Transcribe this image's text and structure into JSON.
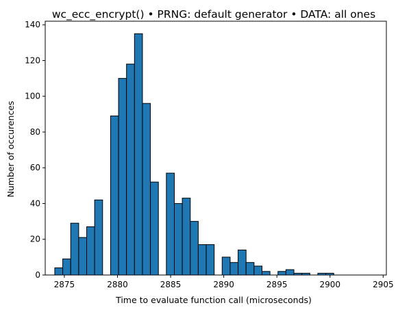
{
  "chart_data": {
    "type": "bar",
    "title": "wc_ecc_encrypt() • PRNG: default generator • DATA: all ones",
    "xlabel": "Time to evaluate function call (microseconds)",
    "ylabel": "Number of occurences",
    "xlim": [
      2873.2,
      2905.3
    ],
    "ylim": [
      0,
      142
    ],
    "xticks": [
      2875,
      2880,
      2885,
      2890,
      2895,
      2900,
      2905
    ],
    "yticks": [
      0,
      20,
      40,
      60,
      80,
      100,
      120,
      140
    ],
    "bar_color": "#1f77b4",
    "edge_color": "#000000",
    "bin_width": 0.75,
    "bins": [
      {
        "x0": 2874.1,
        "value": 4
      },
      {
        "x0": 2874.85,
        "value": 9
      },
      {
        "x0": 2875.6,
        "value": 29
      },
      {
        "x0": 2876.35,
        "value": 21
      },
      {
        "x0": 2877.1,
        "value": 27
      },
      {
        "x0": 2877.85,
        "value": 42
      },
      {
        "x0": 2879.35,
        "value": 89
      },
      {
        "x0": 2880.1,
        "value": 110
      },
      {
        "x0": 2880.85,
        "value": 118
      },
      {
        "x0": 2881.6,
        "value": 135
      },
      {
        "x0": 2882.35,
        "value": 96
      },
      {
        "x0": 2883.1,
        "value": 52
      },
      {
        "x0": 2884.6,
        "value": 57
      },
      {
        "x0": 2885.35,
        "value": 40
      },
      {
        "x0": 2886.1,
        "value": 43
      },
      {
        "x0": 2886.85,
        "value": 30
      },
      {
        "x0": 2887.6,
        "value": 17
      },
      {
        "x0": 2888.35,
        "value": 17
      },
      {
        "x0": 2889.85,
        "value": 10
      },
      {
        "x0": 2890.6,
        "value": 7
      },
      {
        "x0": 2891.35,
        "value": 14
      },
      {
        "x0": 2892.1,
        "value": 7
      },
      {
        "x0": 2892.85,
        "value": 5
      },
      {
        "x0": 2893.6,
        "value": 2
      },
      {
        "x0": 2895.1,
        "value": 2
      },
      {
        "x0": 2895.85,
        "value": 3
      },
      {
        "x0": 2896.6,
        "value": 1
      },
      {
        "x0": 2897.35,
        "value": 1
      },
      {
        "x0": 2898.85,
        "value": 1
      },
      {
        "x0": 2899.6,
        "value": 1
      }
    ],
    "grid": false,
    "legend": "none"
  }
}
